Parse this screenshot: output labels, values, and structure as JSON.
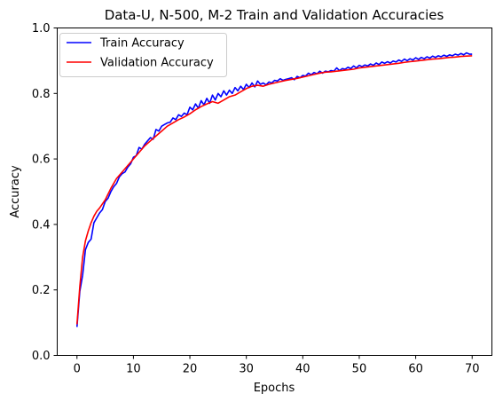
{
  "chart_data": {
    "type": "line",
    "title": "Data-U, N-500, M-2 Train and Validation Accuracies",
    "xlabel": "Epochs",
    "ylabel": "Accuracy",
    "xlim": [
      -3.5,
      73.5
    ],
    "ylim": [
      0.0,
      1.0
    ],
    "xticks": [
      0,
      10,
      20,
      30,
      40,
      50,
      60,
      70
    ],
    "yticks": [
      0.0,
      0.2,
      0.4,
      0.6,
      0.8,
      1.0
    ],
    "grid": false,
    "legend_position": "upper-left",
    "series": [
      {
        "name": "Train Accuracy",
        "color": "#0000ff",
        "x": [
          0,
          0.5,
          1,
          1.5,
          2,
          2.5,
          3,
          3.5,
          4,
          4.5,
          5,
          5.5,
          6,
          6.5,
          7,
          7.5,
          8,
          8.5,
          9,
          9.5,
          10,
          10.5,
          11,
          11.5,
          12,
          12.5,
          13,
          13.5,
          14,
          14.5,
          15,
          15.5,
          16,
          16.5,
          17,
          17.5,
          18,
          18.5,
          19,
          19.5,
          20,
          20.5,
          21,
          21.5,
          22,
          22.5,
          23,
          23.5,
          24,
          24.5,
          25,
          25.5,
          26,
          26.5,
          27,
          27.5,
          28,
          28.5,
          29,
          29.5,
          30,
          30.5,
          31,
          31.5,
          32,
          32.5,
          33,
          33.5,
          34,
          34.5,
          35,
          35.5,
          36,
          36.5,
          37,
          37.5,
          38,
          38.5,
          39,
          39.5,
          40,
          40.5,
          41,
          41.5,
          42,
          42.5,
          43,
          43.5,
          44,
          44.5,
          45,
          45.5,
          46,
          46.5,
          47,
          47.5,
          48,
          48.5,
          49,
          49.5,
          50,
          50.5,
          51,
          51.5,
          52,
          52.5,
          53,
          53.5,
          54,
          54.5,
          55,
          55.5,
          56,
          56.5,
          57,
          57.5,
          58,
          58.5,
          59,
          59.5,
          60,
          60.5,
          61,
          61.5,
          62,
          62.5,
          63,
          63.5,
          64,
          64.5,
          65,
          65.5,
          66,
          66.5,
          67,
          67.5,
          68,
          68.5,
          69,
          69.5,
          70
        ],
        "y": [
          0.087,
          0.195,
          0.245,
          0.323,
          0.345,
          0.355,
          0.405,
          0.42,
          0.435,
          0.445,
          0.47,
          0.48,
          0.5,
          0.515,
          0.525,
          0.545,
          0.555,
          0.56,
          0.575,
          0.585,
          0.605,
          0.61,
          0.635,
          0.63,
          0.645,
          0.655,
          0.665,
          0.66,
          0.69,
          0.685,
          0.7,
          0.705,
          0.71,
          0.712,
          0.725,
          0.72,
          0.735,
          0.73,
          0.74,
          0.735,
          0.758,
          0.75,
          0.768,
          0.755,
          0.778,
          0.765,
          0.785,
          0.77,
          0.795,
          0.78,
          0.8,
          0.79,
          0.808,
          0.795,
          0.81,
          0.8,
          0.818,
          0.808,
          0.822,
          0.812,
          0.828,
          0.818,
          0.832,
          0.82,
          0.838,
          0.828,
          0.832,
          0.826,
          0.835,
          0.832,
          0.84,
          0.838,
          0.845,
          0.84,
          0.843,
          0.845,
          0.848,
          0.842,
          0.852,
          0.848,
          0.855,
          0.853,
          0.862,
          0.857,
          0.864,
          0.86,
          0.868,
          0.862,
          0.868,
          0.866,
          0.87,
          0.868,
          0.878,
          0.87,
          0.876,
          0.874,
          0.88,
          0.876,
          0.884,
          0.878,
          0.886,
          0.882,
          0.887,
          0.884,
          0.89,
          0.886,
          0.893,
          0.888,
          0.896,
          0.892,
          0.897,
          0.893,
          0.899,
          0.896,
          0.902,
          0.898,
          0.905,
          0.9,
          0.906,
          0.902,
          0.909,
          0.904,
          0.91,
          0.906,
          0.912,
          0.908,
          0.914,
          0.91,
          0.915,
          0.912,
          0.917,
          0.913,
          0.918,
          0.915,
          0.92,
          0.917,
          0.922,
          0.918,
          0.924,
          0.92,
          0.92
        ]
      },
      {
        "name": "Validation Accuracy",
        "color": "#ff0000",
        "x": [
          0,
          0.5,
          1,
          1.5,
          2,
          2.5,
          3,
          3.5,
          4,
          5,
          6,
          7,
          8,
          9,
          10,
          11,
          12,
          13,
          14,
          15,
          16,
          17,
          18,
          19,
          20,
          21,
          22,
          23,
          24,
          25,
          26,
          27,
          28,
          29,
          30,
          31,
          32,
          33,
          34,
          35,
          36,
          37,
          38,
          39,
          40,
          41,
          42,
          43,
          44,
          45,
          46,
          47,
          48,
          49,
          50,
          51,
          52,
          53,
          54,
          55,
          56,
          57,
          58,
          59,
          60,
          61,
          62,
          63,
          64,
          65,
          66,
          67,
          68,
          69,
          70
        ],
        "y": [
          0.095,
          0.21,
          0.3,
          0.35,
          0.38,
          0.405,
          0.425,
          0.44,
          0.45,
          0.475,
          0.51,
          0.54,
          0.56,
          0.58,
          0.6,
          0.62,
          0.64,
          0.655,
          0.67,
          0.685,
          0.7,
          0.71,
          0.72,
          0.728,
          0.738,
          0.75,
          0.76,
          0.768,
          0.775,
          0.77,
          0.78,
          0.79,
          0.795,
          0.805,
          0.815,
          0.822,
          0.825,
          0.822,
          0.828,
          0.832,
          0.836,
          0.84,
          0.843,
          0.846,
          0.85,
          0.854,
          0.858,
          0.862,
          0.865,
          0.866,
          0.868,
          0.87,
          0.872,
          0.874,
          0.878,
          0.88,
          0.882,
          0.884,
          0.886,
          0.888,
          0.89,
          0.892,
          0.895,
          0.897,
          0.899,
          0.901,
          0.903,
          0.905,
          0.906,
          0.908,
          0.91,
          0.911,
          0.913,
          0.914,
          0.915
        ]
      }
    ]
  }
}
